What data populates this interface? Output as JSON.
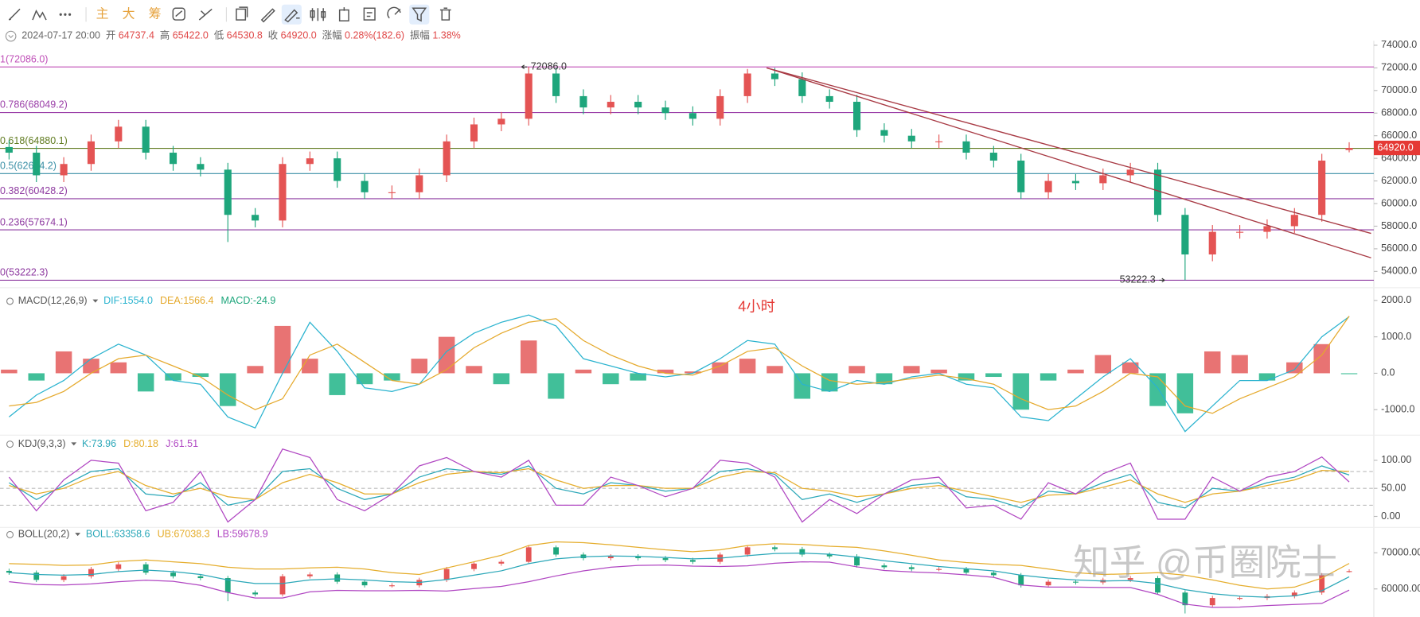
{
  "toolbar": {
    "items": [
      "主",
      "大",
      "筹"
    ]
  },
  "info": {
    "datetime": "2024-07-17 20:00",
    "fields": [
      {
        "label": "开",
        "value": "64737.4"
      },
      {
        "label": "高",
        "value": "65422.0"
      },
      {
        "label": "低",
        "value": "64530.8"
      },
      {
        "label": "收",
        "value": "64920.0"
      },
      {
        "label": "涨幅",
        "value": "0.28%(182.6)"
      },
      {
        "label": "振幅",
        "value": "1.38%"
      }
    ]
  },
  "period_label": "4小时",
  "watermark": "知乎 @币圈院士",
  "chart_data": [
    {
      "type": "candlestick",
      "up_color": "#e45454",
      "down_color": "#1ea67c",
      "open": [
        65000,
        64500,
        62500,
        63500,
        65500,
        66800,
        64500,
        63500,
        63000,
        59000,
        58500,
        63500,
        64000,
        62000,
        61000,
        61000,
        62500,
        65500,
        67000,
        67500,
        71500,
        69500,
        68500,
        69000,
        68500,
        68000,
        67500,
        69500,
        71500,
        71000,
        69500,
        69000,
        66500,
        66000,
        65500,
        65500,
        64500,
        63800,
        61000,
        62000,
        61800,
        62500,
        63000,
        59000,
        55500,
        57500,
        57500,
        58000,
        59000,
        64737.4
      ],
      "high": [
        65600,
        65100,
        64100,
        66100,
        67400,
        67400,
        65100,
        64100,
        63600,
        59600,
        64100,
        64600,
        64600,
        62600,
        61600,
        63100,
        66100,
        67600,
        68100,
        72086.0,
        72000,
        70100,
        69600,
        69600,
        69100,
        68600,
        70100,
        71900,
        72000,
        71600,
        70100,
        69600,
        67100,
        66600,
        66100,
        66100,
        65100,
        64400,
        62600,
        62600,
        63100,
        63600,
        63600,
        59600,
        58100,
        58100,
        58600,
        59600,
        64400,
        65422.0
      ],
      "low": [
        63900,
        61900,
        61900,
        62900,
        64900,
        63900,
        62900,
        62400,
        56600,
        57900,
        57900,
        62900,
        61400,
        60400,
        60400,
        60400,
        61900,
        64900,
        66400,
        66900,
        68900,
        67900,
        67900,
        67900,
        67400,
        66900,
        66900,
        68900,
        70400,
        68900,
        68400,
        65900,
        65400,
        64900,
        64900,
        63900,
        63200,
        60400,
        60400,
        61200,
        61200,
        61900,
        58400,
        53222.3,
        54900,
        56900,
        56900,
        57400,
        58400,
        64530.8
      ],
      "close": [
        64500,
        62500,
        63500,
        65500,
        66800,
        64500,
        63500,
        63000,
        59000,
        58500,
        63500,
        64000,
        62000,
        61000,
        61000,
        62500,
        65500,
        67000,
        67500,
        71500,
        69500,
        68500,
        69000,
        68500,
        68000,
        67500,
        69500,
        71500,
        71000,
        69500,
        69000,
        66500,
        66000,
        65500,
        65500,
        64500,
        63800,
        61000,
        62000,
        61800,
        62500,
        63000,
        59000,
        55500,
        57500,
        57500,
        58000,
        59000,
        63800,
        64920.0
      ],
      "ylim": [
        52800,
        74400
      ],
      "yticks": [
        {
          "value": 54000,
          "label": "54000.0"
        },
        {
          "value": 56000,
          "label": "56000.0"
        },
        {
          "value": 58000,
          "label": "58000.0"
        },
        {
          "value": 60000,
          "label": "60000.0"
        },
        {
          "value": 62000,
          "label": "62000.0"
        },
        {
          "value": 64000,
          "label": "64000.0"
        },
        {
          "value": 66000,
          "label": "66000.0"
        },
        {
          "value": 68000,
          "label": "68000.0"
        },
        {
          "value": 70000,
          "label": "70000.0"
        },
        {
          "value": 72000,
          "label": "72000.0"
        },
        {
          "value": 74000,
          "label": "74000.0"
        }
      ],
      "fib_levels": [
        {
          "value": 72086.0,
          "label": "1(72086.0)",
          "color": "#c050b8"
        },
        {
          "value": 68049.2,
          "label": "0.786(68049.2)",
          "color": "#9b3fa8"
        },
        {
          "value": 64880.1,
          "label": "0.618(64880.1)",
          "color": "#5f7a1e"
        },
        {
          "value": 62654.2,
          "label": "0.5(62654.2)",
          "color": "#3a8fa6"
        },
        {
          "value": 60428.2,
          "label": "0.382(60428.2)",
          "color": "#8e3aa0"
        },
        {
          "value": 57674.1,
          "label": "0.236(57674.1)",
          "color": "#8e3aa0"
        },
        {
          "value": 53222.3,
          "label": "0(53222.3)",
          "color": "#8e3aa0"
        }
      ],
      "trend_lines": [
        {
          "from": [
            27.7,
            72000
          ],
          "to": [
            49.8,
            57360
          ],
          "color": "#a83a44"
        },
        {
          "from": [
            27.7,
            72000
          ],
          "to": [
            49.8,
            55200
          ],
          "color": "#a83a44"
        }
      ],
      "annotations": [
        {
          "value": 72086.0,
          "label": "72086.0"
        },
        {
          "value": 53222.3,
          "label": "53222.3"
        }
      ],
      "last_price": {
        "value": 64920.0,
        "label": "64920.0",
        "color": "#e53935"
      }
    },
    {
      "type": "macd",
      "title": "MACD(12,26,9)",
      "ylim": [
        -1625,
        2300
      ],
      "yticks": [
        {
          "value": -1000,
          "label": "-1000.0"
        },
        {
          "value": 0,
          "label": "0.0"
        },
        {
          "value": 1000,
          "label": "1000.0"
        },
        {
          "value": 2000,
          "label": "2000.0"
        }
      ],
      "series": [
        {
          "name": "DIF:1554.0",
          "color": "#2ab3cf",
          "values": [
            -1200,
            -600,
            -200,
            400,
            800,
            500,
            -200,
            -300,
            -1200,
            -1500,
            0,
            1400,
            600,
            -400,
            -500,
            -300,
            600,
            1100,
            1400,
            1600,
            1300,
            400,
            200,
            0,
            -100,
            0,
            400,
            900,
            800,
            -300,
            -500,
            -200,
            -300,
            -100,
            0,
            -300,
            -400,
            -1200,
            -1300,
            -700,
            -100,
            400,
            -400,
            -1600,
            -900,
            -200,
            -200,
            100,
            1000,
            1554.0
          ]
        },
        {
          "name": "DEA:1566.4",
          "color": "#e5a92c",
          "values": [
            -900,
            -800,
            -500,
            0,
            400,
            500,
            200,
            -100,
            -600,
            -1000,
            -700,
            500,
            800,
            300,
            -200,
            -300,
            100,
            700,
            1100,
            1400,
            1500,
            900,
            500,
            200,
            0,
            -50,
            200,
            600,
            700,
            200,
            -200,
            -300,
            -250,
            -150,
            -50,
            -150,
            -300,
            -700,
            -1000,
            -900,
            -500,
            0,
            -100,
            -900,
            -1100,
            -700,
            -400,
            -100,
            500,
            1566.4
          ]
        },
        {
          "name": "MACD:-24.9",
          "type": "bar",
          "color": "#1ea67c",
          "up_color": "#e45a5a",
          "down_color": "#20b487",
          "values": [
            100,
            -200,
            600,
            400,
            300,
            -500,
            -200,
            -100,
            -900,
            200,
            1300,
            400,
            -600,
            -300,
            -200,
            400,
            1000,
            200,
            -300,
            900,
            -700,
            100,
            -300,
            -200,
            100,
            50,
            300,
            400,
            200,
            -700,
            -500,
            200,
            -300,
            200,
            100,
            -200,
            -100,
            -1000,
            -200,
            100,
            500,
            300,
            -900,
            -1100,
            600,
            500,
            -200,
            300,
            800,
            -24.9
          ]
        }
      ]
    },
    {
      "type": "kdj",
      "title": "KDJ(9,3,3)",
      "ylim": [
        -18,
        140
      ],
      "yticks": [
        {
          "value": 0,
          "label": "0.00"
        },
        {
          "value": 50,
          "label": "50.00"
        },
        {
          "value": 100,
          "label": "100.00"
        }
      ],
      "guide_levels": [
        20,
        50,
        80
      ],
      "series": [
        {
          "name": "K:73.96",
          "color": "#2aa7b8",
          "values": [
            60,
            30,
            55,
            80,
            85,
            40,
            35,
            60,
            20,
            30,
            80,
            85,
            50,
            30,
            40,
            70,
            85,
            80,
            75,
            90,
            50,
            40,
            60,
            55,
            45,
            50,
            80,
            85,
            75,
            30,
            40,
            25,
            40,
            55,
            60,
            35,
            30,
            15,
            45,
            40,
            60,
            75,
            25,
            15,
            50,
            45,
            60,
            70,
            90,
            73.96
          ]
        },
        {
          "name": "D:80.18",
          "color": "#e5ad2c",
          "values": [
            55,
            40,
            50,
            70,
            80,
            55,
            40,
            50,
            35,
            30,
            60,
            75,
            60,
            40,
            40,
            60,
            75,
            80,
            78,
            85,
            65,
            50,
            55,
            55,
            50,
            50,
            70,
            80,
            78,
            50,
            45,
            35,
            40,
            50,
            55,
            45,
            35,
            25,
            38,
            40,
            52,
            65,
            40,
            25,
            40,
            45,
            55,
            65,
            82,
            80.18
          ]
        },
        {
          "name": "J:61.51",
          "color": "#b046c2",
          "values": [
            70,
            10,
            65,
            100,
            95,
            10,
            25,
            80,
            -10,
            30,
            120,
            105,
            30,
            10,
            40,
            90,
            105,
            80,
            70,
            100,
            20,
            20,
            70,
            55,
            35,
            50,
            100,
            95,
            70,
            -10,
            30,
            5,
            40,
            65,
            70,
            15,
            20,
            -5,
            60,
            40,
            76,
            95,
            -5,
            -5,
            70,
            45,
            70,
            80,
            106,
            61.51
          ]
        }
      ]
    },
    {
      "type": "boll",
      "title": "BOLL(20,2)",
      "ylim": [
        52250,
        76750
      ],
      "yticks": [
        {
          "value": 60000,
          "label": "60000.00"
        },
        {
          "value": 70000,
          "label": "70000.00"
        }
      ],
      "series": [
        {
          "name": "BOLL:63358.6",
          "color": "#2aa7b8",
          "values": [
            64500,
            64000,
            63800,
            64000,
            64800,
            65200,
            64800,
            64000,
            62500,
            61500,
            61500,
            62500,
            62800,
            62500,
            62000,
            61800,
            62600,
            63800,
            65000,
            67000,
            68300,
            68900,
            69100,
            69000,
            68700,
            68300,
            68500,
            69200,
            69800,
            69900,
            69600,
            68800,
            67800,
            67000,
            66200,
            65600,
            65000,
            63800,
            63000,
            62500,
            62200,
            62300,
            61500,
            59800,
            58700,
            58000,
            57700,
            58100,
            59500,
            63358.6
          ]
        },
        {
          "name": "UB:67038.3",
          "color": "#e5ad2c",
          "values": [
            67000,
            66800,
            66500,
            66600,
            67600,
            68000,
            67500,
            67000,
            66000,
            65500,
            65500,
            65800,
            66000,
            65500,
            64500,
            64000,
            65800,
            67500,
            69300,
            72000,
            73000,
            72800,
            72200,
            71500,
            70800,
            70300,
            70800,
            72000,
            72500,
            72300,
            71800,
            71500,
            70500,
            69300,
            68000,
            67300,
            66800,
            66500,
            65500,
            64500,
            64000,
            64200,
            64500,
            63800,
            62500,
            61000,
            60000,
            60500,
            63000,
            67038.3
          ]
        },
        {
          "name": "LB:59678.9",
          "color": "#b046c2",
          "values": [
            62000,
            61200,
            61100,
            61400,
            62000,
            62400,
            62100,
            61000,
            59000,
            57500,
            57500,
            59200,
            59600,
            59500,
            59500,
            59600,
            59400,
            60100,
            60700,
            62000,
            63600,
            65000,
            66000,
            66500,
            66600,
            66300,
            66200,
            66400,
            67100,
            67500,
            67400,
            66100,
            65100,
            64700,
            64400,
            63900,
            63200,
            61100,
            60500,
            60500,
            60400,
            60400,
            58500,
            55800,
            54900,
            55000,
            55400,
            55700,
            56000,
            59678.9
          ]
        }
      ]
    }
  ]
}
